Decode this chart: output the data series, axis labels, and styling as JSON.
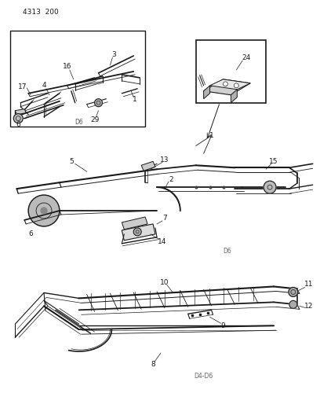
{
  "background_color": "#ffffff",
  "line_color": "#1a1a1a",
  "top_label": "4313  200",
  "inset1_label": "D6",
  "main_label": "D6",
  "bottom_label": "D4-D6",
  "fig_width": 4.08,
  "fig_height": 5.33,
  "dpi": 100,
  "font_size_title": 6.5,
  "font_size_callout": 6.5,
  "font_size_label": 5.5
}
